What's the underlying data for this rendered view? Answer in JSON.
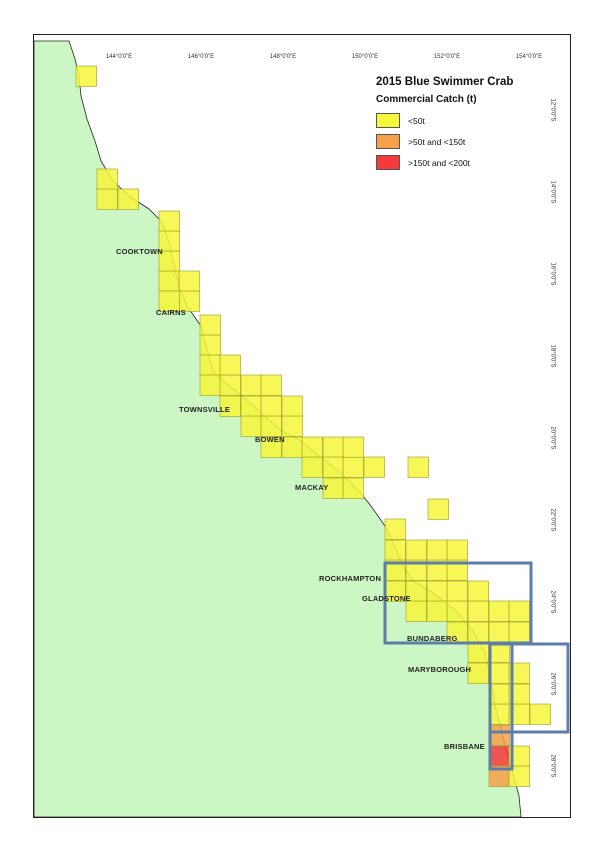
{
  "map": {
    "title": "2015 Blue Swimmer Crab",
    "subtitle": "Commercial Catch (t)",
    "legend": [
      {
        "label": "<50t",
        "color": "#f6f63a"
      },
      {
        "label": ">50t and <150t",
        "color": "#f7a04a"
      },
      {
        "label": ">150t and <200t",
        "color": "#f43a3a"
      }
    ],
    "colors": {
      "land": "#ccf7c4",
      "coast": "#222222",
      "cell_border": "#9a9a2a",
      "highlight_box": "#5d7ea6"
    },
    "longitude_ticks": [
      "144°0'0\"E",
      "146°0'0\"E",
      "148°0'0\"E",
      "150°0'0\"E",
      "152°0'0\"E",
      "154°0'0\"E"
    ],
    "latitude_ticks": [
      "12°0'0\"S",
      "14°0'0\"S",
      "16°0'0\"S",
      "18°0'0\"S",
      "20°0'0\"S",
      "22°0'0\"S",
      "24°0'0\"S",
      "26°0'0\"S",
      "28°0'0\"S"
    ],
    "towns": [
      "COOKTOWN",
      "CAIRNS",
      "TOWNSVILLE",
      "BOWEN",
      "MACKAY",
      "ROCKHAMPTON",
      "GLADSTONE",
      "BUNDABERG",
      "MARYBOROUGH",
      "BRISBANE"
    ]
  }
}
